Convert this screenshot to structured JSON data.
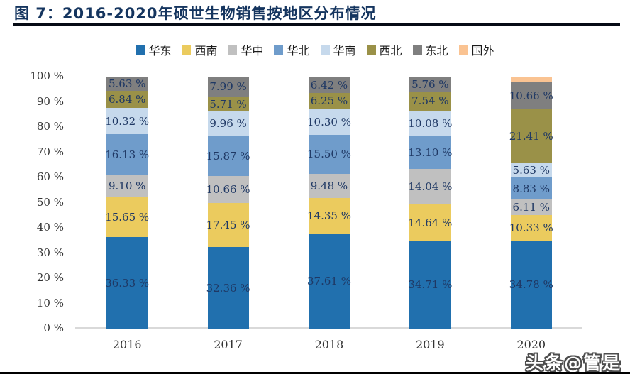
{
  "page": {
    "title": "图 7：2016-2020年硕世生物销售按地区分布情况",
    "watermark": "头条@管是"
  },
  "colors": {
    "title_text": "#15355F",
    "rule": "#060B15",
    "baseline": "#D9D9D9",
    "segment_label": "#1F3864",
    "axis_label": "#333333"
  },
  "chart_data": {
    "type": "bar",
    "stacked": true,
    "grid": false,
    "legend_position": "top",
    "title": "图 7：2016-2020年硕世生物销售按地区分布情况",
    "xlabel": "",
    "ylabel": "",
    "ylim": [
      0,
      100
    ],
    "categories": [
      "2016",
      "2017",
      "2018",
      "2019",
      "2020"
    ],
    "y_ticks": {
      "values": [
        0,
        10,
        20,
        30,
        40,
        50,
        60,
        70,
        80,
        90,
        100
      ],
      "labels": [
        "0 %",
        "10 %",
        "20 %",
        "30 %",
        "40 %",
        "50 %",
        "60 %",
        "70 %",
        "80 %",
        "90 %",
        "100 %"
      ]
    },
    "series": [
      {
        "name": "华东",
        "color": "#2170AE",
        "values": [
          36.33,
          32.36,
          37.61,
          34.71,
          34.78
        ],
        "labels": [
          "36.33 %",
          "32.36 %",
          "37.61 %",
          "34.71 %",
          "34.78 %"
        ]
      },
      {
        "name": "西南",
        "color": "#EBCB5E",
        "values": [
          15.65,
          17.45,
          14.35,
          14.64,
          10.33
        ],
        "labels": [
          "15.65 %",
          "17.45 %",
          "14.35 %",
          "14.64 %",
          "10.33 %"
        ]
      },
      {
        "name": "华中",
        "color": "#C0C0C0",
        "values": [
          9.1,
          10.66,
          9.48,
          14.04,
          6.11
        ],
        "labels": [
          "9.10 %",
          "10.66 %",
          "9.48 %",
          "14.04 %",
          "6.11 %"
        ]
      },
      {
        "name": "华北",
        "color": "#6F9CCB",
        "values": [
          16.13,
          15.87,
          15.5,
          13.1,
          8.83
        ],
        "labels": [
          "16.13 %",
          "15.87 %",
          "15.50 %",
          "13.10 %",
          "8.83 %"
        ]
      },
      {
        "name": "华南",
        "color": "#C6D9EC",
        "values": [
          10.32,
          9.96,
          10.3,
          10.08,
          5.63
        ],
        "labels": [
          "10.32 %",
          "9.96 %",
          "10.30 %",
          "10.08 %",
          "5.63 %"
        ]
      },
      {
        "name": "西北",
        "color": "#9A9148",
        "values": [
          6.84,
          5.71,
          6.25,
          7.54,
          21.41
        ],
        "labels": [
          "6.84 %",
          "5.71 %",
          "6.25 %",
          "7.54 %",
          "21.41 %"
        ]
      },
      {
        "name": "东北",
        "color": "#7F7F7F",
        "values": [
          5.63,
          7.99,
          6.42,
          5.76,
          10.66
        ],
        "labels": [
          "5.63 %",
          "7.99 %",
          "6.42 %",
          "5.76 %",
          "10.66 %"
        ]
      },
      {
        "name": "国外",
        "color": "#FAC392",
        "values": [
          0,
          0,
          0,
          0,
          2.25
        ],
        "labels": [
          "",
          "",
          "",
          "",
          ""
        ]
      }
    ]
  }
}
